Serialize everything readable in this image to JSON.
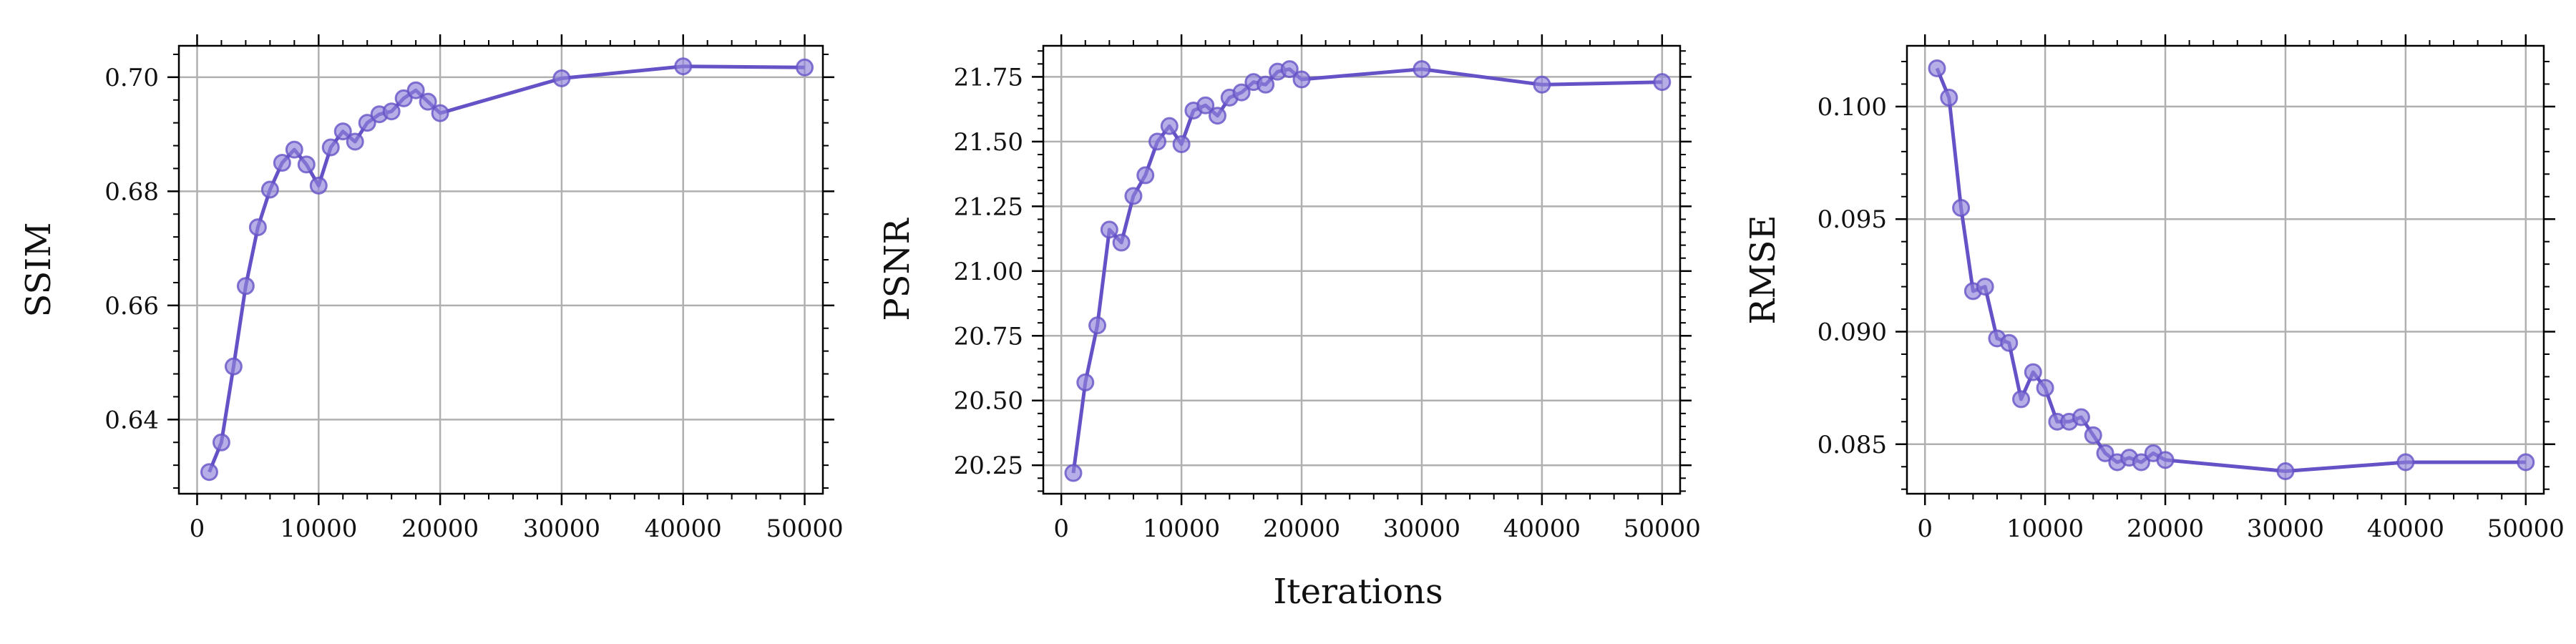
{
  "figure": {
    "xlabel": "Iterations"
  },
  "colors": {
    "line": "#6652c7",
    "marker_fill": "#8f83d9",
    "grid": "#b0b0b0",
    "axis": "#000000"
  },
  "chart_data": [
    {
      "type": "line",
      "title": "",
      "ylabel": "SSIM",
      "xlim": [
        -1500,
        51500
      ],
      "ylim": [
        0.627,
        0.7055
      ],
      "xticks": [
        0,
        10000,
        20000,
        30000,
        40000,
        50000
      ],
      "yticks": [
        0.64,
        0.66,
        0.68,
        0.7
      ],
      "ytick_labels": [
        "0.64",
        "0.66",
        "0.68",
        "0.70"
      ],
      "grid": true,
      "series": [
        {
          "x": [
            1000,
            2000,
            3000,
            4000,
            5000,
            6000,
            7000,
            8000,
            9000,
            10000,
            11000,
            12000,
            13000,
            14000,
            15000,
            16000,
            17000,
            18000,
            19000,
            20000,
            30000,
            40000,
            50000
          ],
          "y": [
            0.6308,
            0.636,
            0.6493,
            0.6634,
            0.6737,
            0.6803,
            0.685,
            0.6873,
            0.6847,
            0.681,
            0.6877,
            0.6905,
            0.6887,
            0.692,
            0.6935,
            0.694,
            0.6963,
            0.6977,
            0.6957,
            0.6937,
            0.6998,
            0.7019,
            0.7017
          ]
        }
      ]
    },
    {
      "type": "line",
      "title": "",
      "ylabel": "PSNR",
      "xlim": [
        -1500,
        51500
      ],
      "ylim": [
        20.14,
        21.87
      ],
      "xticks": [
        0,
        10000,
        20000,
        30000,
        40000,
        50000
      ],
      "yticks": [
        20.25,
        20.5,
        20.75,
        21.0,
        21.25,
        21.5,
        21.75
      ],
      "ytick_labels": [
        "20.25",
        "20.50",
        "20.75",
        "21.00",
        "21.25",
        "21.50",
        "21.75"
      ],
      "grid": true,
      "series": [
        {
          "x": [
            1000,
            2000,
            3000,
            4000,
            5000,
            6000,
            7000,
            8000,
            9000,
            10000,
            11000,
            12000,
            13000,
            14000,
            15000,
            16000,
            17000,
            18000,
            19000,
            20000,
            30000,
            40000,
            50000
          ],
          "y": [
            20.22,
            20.57,
            20.79,
            21.16,
            21.11,
            21.29,
            21.37,
            21.5,
            21.56,
            21.49,
            21.62,
            21.64,
            21.6,
            21.67,
            21.69,
            21.73,
            21.72,
            21.77,
            21.78,
            21.74,
            21.78,
            21.72,
            21.73
          ]
        }
      ]
    },
    {
      "type": "line",
      "title": "",
      "ylabel": "RMSE",
      "xlim": [
        -1500,
        51500
      ],
      "ylim": [
        0.0828,
        0.1027
      ],
      "xticks": [
        0,
        10000,
        20000,
        30000,
        40000,
        50000
      ],
      "yticks": [
        0.085,
        0.09,
        0.095,
        0.1
      ],
      "ytick_labels": [
        "0.085",
        "0.090",
        "0.095",
        "0.100"
      ],
      "grid": true,
      "series": [
        {
          "x": [
            1000,
            2000,
            3000,
            4000,
            5000,
            6000,
            7000,
            8000,
            9000,
            10000,
            11000,
            12000,
            13000,
            14000,
            15000,
            16000,
            17000,
            18000,
            19000,
            20000,
            30000,
            40000,
            50000
          ],
          "y": [
            0.1017,
            0.1004,
            0.0955,
            0.0918,
            0.092,
            0.0897,
            0.0895,
            0.087,
            0.0882,
            0.0875,
            0.086,
            0.086,
            0.0862,
            0.0854,
            0.0846,
            0.0842,
            0.0844,
            0.0842,
            0.0846,
            0.0843,
            0.0838,
            0.0842,
            0.0842
          ]
        }
      ]
    }
  ]
}
